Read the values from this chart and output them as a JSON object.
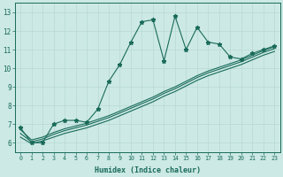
{
  "xlabel": "Humidex (Indice chaleur)",
  "bg_color": "#cce9e5",
  "line_color": "#1a6b5a",
  "grid_color": "#b8d8d4",
  "xlim": [
    -0.5,
    23.5
  ],
  "ylim": [
    5.5,
    13.5
  ],
  "xticks": [
    0,
    1,
    2,
    3,
    4,
    5,
    6,
    7,
    8,
    9,
    10,
    11,
    12,
    13,
    14,
    15,
    16,
    17,
    18,
    19,
    20,
    21,
    22,
    23
  ],
  "yticks": [
    6,
    7,
    8,
    9,
    10,
    11,
    12,
    13
  ],
  "line1_x": [
    0,
    1,
    2,
    3,
    4,
    5,
    6,
    7,
    8,
    9,
    10,
    11,
    12,
    13,
    14,
    15,
    16,
    17,
    18,
    19,
    20,
    21,
    22,
    23
  ],
  "line1_y": [
    6.8,
    6.0,
    6.0,
    7.0,
    7.2,
    7.2,
    7.1,
    7.8,
    9.3,
    10.2,
    11.4,
    12.5,
    12.6,
    10.4,
    12.8,
    11.0,
    12.2,
    11.4,
    11.3,
    10.6,
    10.5,
    10.8,
    11.0,
    11.2
  ],
  "line2_x": [
    0,
    1,
    2,
    3,
    4,
    5,
    6,
    7,
    8,
    9,
    10,
    11,
    12,
    13,
    14,
    15,
    16,
    17,
    18,
    19,
    20,
    21,
    22,
    23
  ],
  "line2_y": [
    6.3,
    5.95,
    6.1,
    6.3,
    6.5,
    6.65,
    6.8,
    7.0,
    7.2,
    7.45,
    7.7,
    7.95,
    8.2,
    8.5,
    8.75,
    9.05,
    9.35,
    9.6,
    9.8,
    10.0,
    10.2,
    10.45,
    10.7,
    10.9
  ],
  "line3_x": [
    0,
    1,
    2,
    3,
    4,
    5,
    6,
    7,
    8,
    9,
    10,
    11,
    12,
    13,
    14,
    15,
    16,
    17,
    18,
    19,
    20,
    21,
    22,
    23
  ],
  "line3_y": [
    6.5,
    6.05,
    6.2,
    6.45,
    6.65,
    6.8,
    6.95,
    7.15,
    7.35,
    7.6,
    7.85,
    8.1,
    8.35,
    8.65,
    8.9,
    9.2,
    9.5,
    9.75,
    9.95,
    10.15,
    10.35,
    10.6,
    10.85,
    11.05
  ],
  "line4_x": [
    0,
    1,
    2,
    3,
    4,
    5,
    6,
    7,
    8,
    9,
    10,
    11,
    12,
    13,
    14,
    15,
    16,
    17,
    18,
    19,
    20,
    21,
    22,
    23
  ],
  "line4_y": [
    6.7,
    6.15,
    6.3,
    6.55,
    6.75,
    6.9,
    7.05,
    7.25,
    7.45,
    7.7,
    7.95,
    8.2,
    8.45,
    8.75,
    9.0,
    9.3,
    9.6,
    9.85,
    10.05,
    10.25,
    10.45,
    10.7,
    10.95,
    11.15
  ]
}
